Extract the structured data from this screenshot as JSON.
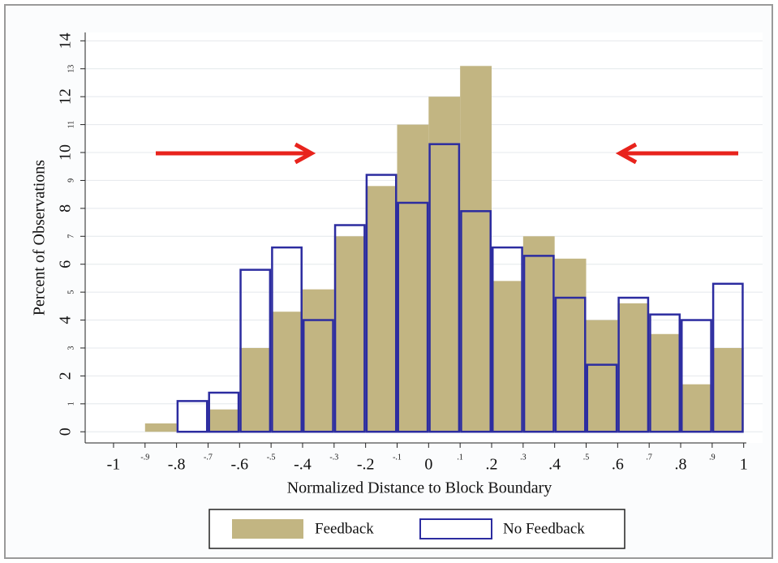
{
  "chart_data": {
    "type": "histogram",
    "xlabel": "Normalized Distance to Block Boundary",
    "ylabel": "Percent of Observations",
    "bins": [
      -0.9,
      -0.8,
      -0.7,
      -0.6,
      -0.5,
      -0.4,
      -0.3,
      -0.2,
      -0.1,
      0,
      0.1,
      0.2,
      0.3,
      0.4,
      0.5,
      0.6,
      0.7,
      0.8,
      0.9,
      1
    ],
    "series": [
      {
        "name": "Feedback",
        "color": "#c2b582",
        "filled": true,
        "values": [
          0.3,
          0,
          0.8,
          3.0,
          4.3,
          5.1,
          7.0,
          8.8,
          11.0,
          12.0,
          13.1,
          5.4,
          7.0,
          6.2,
          4.0,
          4.6,
          3.5,
          1.7,
          3.0
        ]
      },
      {
        "name": "No Feedback",
        "color": "#2c2ca0",
        "filled": false,
        "values": [
          0,
          1.1,
          1.4,
          5.8,
          6.6,
          4.0,
          7.4,
          9.2,
          8.2,
          10.3,
          7.9,
          6.6,
          6.3,
          4.8,
          2.4,
          4.8,
          4.2,
          4.0,
          5.3
        ]
      }
    ],
    "xlim": [
      -1.09,
      1.06
    ],
    "xticks": [
      -1,
      {
        "value": -0.9,
        "label": "-.9"
      },
      {
        "value": -0.8,
        "label": "-.8"
      },
      {
        "value": -0.7,
        "label": "-.7"
      },
      {
        "value": -0.6,
        "label": "-.6"
      },
      {
        "value": -0.5,
        "label": "-.5"
      },
      {
        "value": -0.4,
        "label": "-.4"
      },
      {
        "value": -0.3,
        "label": "-.3"
      },
      {
        "value": -0.2,
        "label": "-.2"
      },
      {
        "value": -0.1,
        "label": "-.1"
      },
      0,
      {
        "value": 0.1,
        "label": ".1"
      },
      {
        "value": 0.2,
        "label": ".2"
      },
      {
        "value": 0.3,
        "label": ".3"
      },
      {
        "value": 0.4,
        "label": ".4"
      },
      {
        "value": 0.5,
        "label": ".5"
      },
      {
        "value": 0.6,
        "label": ".6"
      },
      {
        "value": 0.7,
        "label": ".7"
      },
      {
        "value": 0.8,
        "label": ".8"
      },
      {
        "value": 0.9,
        "label": ".9"
      },
      1
    ],
    "ylim": [
      -0.4,
      14.3
    ],
    "yticks": [
      0,
      1,
      2,
      3,
      4,
      5,
      6,
      7,
      8,
      9,
      10,
      11,
      12,
      13,
      14
    ],
    "grid": true
  }
}
